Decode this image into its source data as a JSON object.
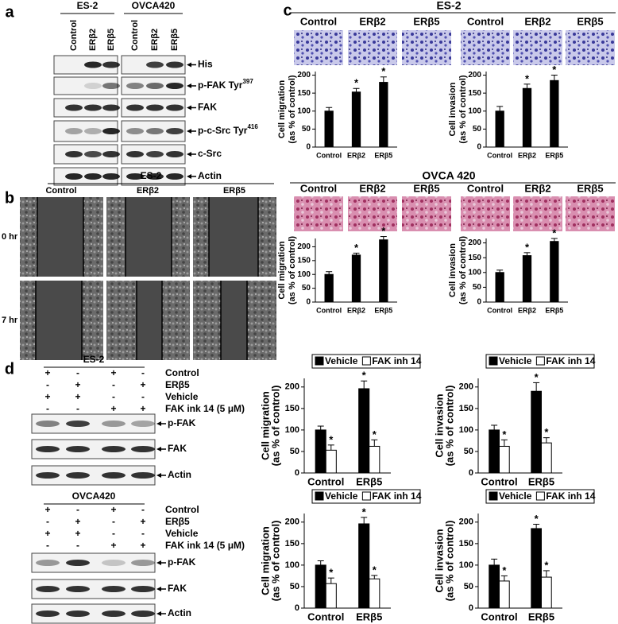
{
  "panel_a": {
    "label": "a",
    "groups": [
      "ES-2",
      "OVCA420"
    ],
    "lanes": [
      [
        "Control",
        "ERβ2",
        "ERβ5"
      ],
      [
        "Control",
        "ERβ2",
        "ERβ5"
      ]
    ],
    "rows": [
      {
        "text": "His"
      },
      {
        "text": "p-FAK Tyr",
        "sup": "397"
      },
      {
        "text": "FAK"
      },
      {
        "text": "p-c-Src Tyr",
        "sup": "416"
      },
      {
        "text": "c-Src"
      },
      {
        "text": "Actin"
      }
    ]
  },
  "panel_b": {
    "label": "b",
    "title": "ES-2",
    "columns": [
      "Control",
      "ERβ2",
      "ERβ5"
    ],
    "rows": [
      "0 hr",
      "7 hr"
    ]
  },
  "panel_c": {
    "label": "c",
    "sections": [
      {
        "title": "ES-2",
        "image_labels": [
          "Control",
          "ERβ2",
          "ERβ5",
          "Control",
          "ERβ2",
          "ERβ5"
        ]
      },
      {
        "title": "OVCA 420",
        "image_labels": [
          "Control",
          "ERβ2",
          "ERβ5",
          "Control",
          "ERβ2",
          "ERβ5"
        ]
      }
    ]
  },
  "panel_d": {
    "label": "d",
    "blots": [
      {
        "title": "ES-2",
        "treatments": [
          {
            "label": "Control",
            "signs": [
              "+",
              "-",
              "+",
              "-"
            ]
          },
          {
            "label": "ERβ5",
            "signs": [
              "-",
              "+",
              "-",
              "+"
            ]
          },
          {
            "label": "Vehicle",
            "signs": [
              "+",
              "+",
              "-",
              "-"
            ]
          },
          {
            "label": "FAK ink 14 (5 μM)",
            "signs": [
              "-",
              "-",
              "+",
              "+"
            ]
          }
        ],
        "rows": [
          "p-FAK",
          "FAK",
          "Actin"
        ]
      },
      {
        "title": "OVCA420",
        "treatments": [
          {
            "label": "Control",
            "signs": [
              "+",
              "-",
              "+",
              "-"
            ]
          },
          {
            "label": "ERβ5",
            "signs": [
              "-",
              "+",
              "-",
              "+"
            ]
          },
          {
            "label": "Vehicle",
            "signs": [
              "+",
              "+",
              "-",
              "-"
            ]
          },
          {
            "label": "FAK ink 14 (5 μM)",
            "signs": [
              "-",
              "-",
              "+",
              "+"
            ]
          }
        ],
        "rows": [
          "p-FAK",
          "FAK",
          "Actin"
        ]
      }
    ]
  },
  "chart_data": [
    {
      "type": "bar",
      "categories": [
        "Control",
        "ERβ2",
        "ERβ5"
      ],
      "values": [
        100,
        153,
        180
      ],
      "errors": [
        10,
        10,
        15
      ],
      "significance": [
        null,
        "*",
        "*"
      ],
      "color": "#000000",
      "ylabel": [
        "Cell migration",
        "(as % of control)"
      ],
      "ylim": [
        0,
        210
      ],
      "yticks": [
        0,
        50,
        100,
        150,
        200
      ]
    },
    {
      "type": "bar",
      "categories": [
        "Control",
        "ERβ2",
        "ERβ5"
      ],
      "values": [
        100,
        163,
        185
      ],
      "errors": [
        13,
        12,
        15
      ],
      "significance": [
        null,
        "*",
        "*"
      ],
      "color": "#000000",
      "ylabel": [
        "Cell invasion",
        "(as % of control)"
      ],
      "ylim": [
        0,
        210
      ],
      "yticks": [
        0,
        50,
        100,
        150,
        200
      ]
    },
    {
      "type": "bar",
      "categories": [
        "Control",
        "ERβ2",
        "ERβ5"
      ],
      "values": [
        100,
        170,
        225
      ],
      "errors": [
        10,
        7,
        12
      ],
      "significance": [
        null,
        "*",
        "*"
      ],
      "color": "#000000",
      "ylabel": [
        "Cell migration",
        "(as % of control)"
      ],
      "ylim": [
        0,
        230
      ],
      "yticks": [
        0,
        50,
        100,
        150,
        200
      ]
    },
    {
      "type": "bar",
      "categories": [
        "Control",
        "ERβ2",
        "ERβ5"
      ],
      "values": [
        100,
        157,
        205
      ],
      "errors": [
        8,
        10,
        10
      ],
      "significance": [
        null,
        "*",
        "*"
      ],
      "color": "#000000",
      "ylabel": [
        "Cell invasion",
        "(as % of control)"
      ],
      "ylim": [
        0,
        215
      ],
      "yticks": [
        0,
        50,
        100,
        150,
        200
      ]
    },
    {
      "type": "bar",
      "categories": [
        "Control",
        "ERβ5"
      ],
      "series": [
        {
          "name": "Vehicle",
          "color": "#000000",
          "values": [
            100,
            196
          ],
          "errors": [
            9,
            18
          ],
          "significance": [
            null,
            "*"
          ]
        },
        {
          "name": "FAK inh 14",
          "color": "#ffffff",
          "values": [
            53,
            62
          ],
          "errors": [
            12,
            15
          ],
          "significance": [
            "*",
            "*"
          ]
        }
      ],
      "ylabel": [
        "Cell migration",
        "(as % of control)"
      ],
      "ylim": [
        0,
        220
      ],
      "yticks": [
        0,
        50,
        100,
        150,
        200
      ]
    },
    {
      "type": "bar",
      "categories": [
        "Control",
        "ERβ5"
      ],
      "series": [
        {
          "name": "Vehicle",
          "color": "#000000",
          "values": [
            100,
            190
          ],
          "errors": [
            11,
            20
          ],
          "significance": [
            null,
            "*"
          ]
        },
        {
          "name": "FAK inh 14",
          "color": "#ffffff",
          "values": [
            62,
            70
          ],
          "errors": [
            15,
            12
          ],
          "significance": [
            "*",
            "*"
          ]
        }
      ],
      "ylabel": [
        "Cell invasion",
        "(as % of control)"
      ],
      "ylim": [
        0,
        220
      ],
      "yticks": [
        0,
        50,
        100,
        150,
        200
      ]
    },
    {
      "type": "bar",
      "categories": [
        "Control",
        "ERβ5"
      ],
      "series": [
        {
          "name": "Vehicle",
          "color": "#000000",
          "values": [
            100,
            196
          ],
          "errors": [
            10,
            15
          ],
          "significance": [
            null,
            "*"
          ]
        },
        {
          "name": "FAK inh 14",
          "color": "#ffffff",
          "values": [
            57,
            68
          ],
          "errors": [
            13,
            8
          ],
          "significance": [
            "*",
            "*"
          ]
        }
      ],
      "ylabel": [
        "Cell migration",
        "(as % of control)"
      ],
      "ylim": [
        0,
        220
      ],
      "yticks": [
        0,
        50,
        100,
        150,
        200
      ]
    },
    {
      "type": "bar",
      "categories": [
        "Control",
        "ERβ5"
      ],
      "series": [
        {
          "name": "Vehicle",
          "color": "#000000",
          "values": [
            100,
            185
          ],
          "errors": [
            14,
            10
          ],
          "significance": [
            null,
            "*"
          ]
        },
        {
          "name": "FAK inh 14",
          "color": "#ffffff",
          "values": [
            63,
            72
          ],
          "errors": [
            12,
            15
          ],
          "significance": [
            "*",
            "*"
          ]
        }
      ],
      "ylabel": [
        "Cell invasion",
        "(as % of control)"
      ],
      "ylim": [
        0,
        220
      ],
      "yticks": [
        0,
        50,
        100,
        150,
        200
      ]
    }
  ]
}
